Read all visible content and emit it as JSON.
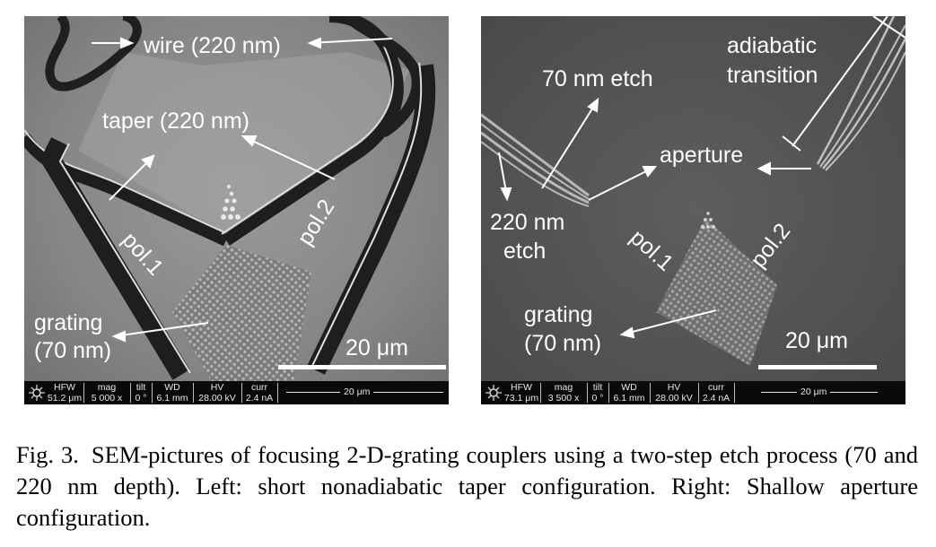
{
  "figure": {
    "left_panel": {
      "labels": {
        "wire": "wire (220 nm)",
        "taper": "taper (220 nm)",
        "pol1": "pol.1",
        "pol2": "pol.2",
        "grating_line1": "grating",
        "grating_line2": "(70 nm)",
        "scale": "20 μm"
      },
      "databar": {
        "hfw_label": "HFW",
        "hfw": "51.2 μm",
        "mag_label": "mag",
        "mag": "5 000 x",
        "tilt_label": "tilt",
        "tilt": "0 °",
        "wd_label": "WD",
        "wd": "6.1 mm",
        "hv_label": "HV",
        "hv": "28.00 kV",
        "curr_label": "curr",
        "curr": "2.4 nA",
        "scale_text": "20 μm"
      }
    },
    "right_panel": {
      "labels": {
        "adiabatic_line1": "adiabatic",
        "adiabatic_line2": "transition",
        "etch70": "70 nm etch",
        "aperture": "aperture",
        "etch220_line1": "220 nm",
        "etch220_line2": "etch",
        "pol1": "pol.1",
        "pol2": "pol.2",
        "grating_line1": "grating",
        "grating_line2": "(70 nm)",
        "scale": "20 μm"
      },
      "databar": {
        "hfw_label": "HFW",
        "hfw": "73.1 μm",
        "mag_label": "mag",
        "mag": "3 500 x",
        "tilt_label": "tilt",
        "tilt": "0 °",
        "wd_label": "WD",
        "wd": "6.1 mm",
        "hv_label": "HV",
        "hv": "28.00 kV",
        "curr_label": "curr",
        "curr": "2.4 nA",
        "scale_text": "20 μm"
      }
    }
  },
  "caption": {
    "label": "Fig. 3.",
    "text": "SEM-pictures of focusing 2-D-grating couplers using a two-step etch process (70 and 220 nm depth). Left: short nonadiabatic taper configuration. Right: Shallow aperture configuration."
  }
}
